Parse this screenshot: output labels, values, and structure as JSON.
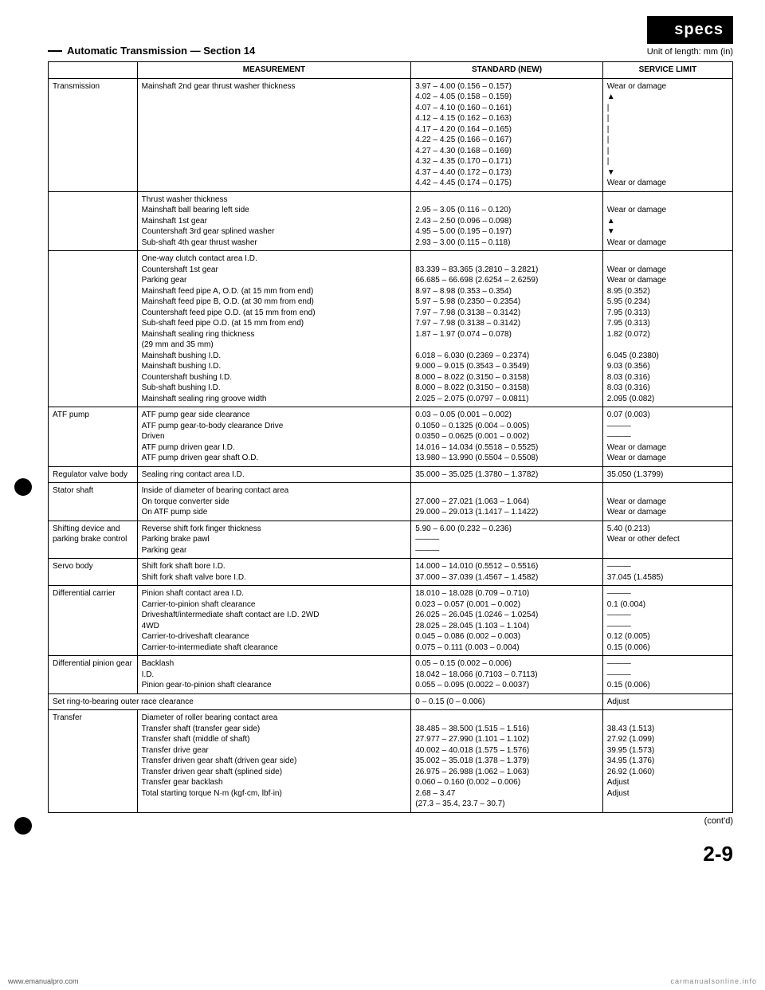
{
  "header": {
    "specs_label": "specs",
    "unit": "Unit of length: mm (in)",
    "section_title": "Automatic Transmission — Section 14"
  },
  "columns": {
    "c1": "",
    "c2": "MEASUREMENT",
    "c3": "STANDARD (NEW)",
    "c4": "SERVICE LIMIT"
  },
  "rows": [
    {
      "label": "Transmission",
      "meas": "Mainshaft 2nd gear thrust washer thickness",
      "std": "3.97 – 4.00 (0.156 – 0.157)\n4.02 – 4.05 (0.158 – 0.159)\n4.07 – 4.10 (0.160 – 0.161)\n4.12 – 4.15 (0.162 – 0.163)\n4.17 – 4.20 (0.164 – 0.165)\n4.22 – 4.25 (0.166 – 0.167)\n4.27 – 4.30 (0.168 – 0.169)\n4.32 – 4.35 (0.170 – 0.171)\n4.37 – 4.40 (0.172 – 0.173)\n4.42 – 4.45 (0.174 – 0.175)",
      "svc": "Wear or damage\n▲\n|\n|\n|\n|\n|\n|\n▼\nWear or damage"
    },
    {
      "label": "",
      "meas": "Thrust washer thickness\n  Mainshaft ball bearing left side\n  Mainshaft 1st gear\n  Countershaft 3rd gear splined washer\n  Sub-shaft 4th gear thrust washer",
      "std": "\n2.95 – 3.05 (0.116 – 0.120)\n2.43 – 2.50 (0.096 – 0.098)\n4.95 – 5.00 (0.195 – 0.197)\n2.93 – 3.00 (0.115 – 0.118)",
      "svc": "\nWear or damage\n▲\n▼\nWear or damage"
    },
    {
      "label": "",
      "meas": "One-way clutch contact area I.D.\n  Countershaft 1st gear\n  Parking gear\nMainshaft feed pipe A, O.D. (at 15 mm from end)\nMainshaft feed pipe B, O.D. (at 30 mm from end)\nCountershaft feed pipe O.D. (at 15 mm from end)\nSub-shaft feed pipe O.D. (at 15 mm from end)\nMainshaft sealing ring thickness\n  (29 mm and 35 mm)\nMainshaft bushing I.D.\nMainshaft bushing I.D.\nCountershaft bushing I.D.\nSub-shaft bushing I.D.\nMainshaft sealing ring groove width",
      "std": "\n83.339 – 83.365 (3.2810 – 3.2821)\n66.685 – 66.698 (2.6254 – 2.6259)\n8.97 – 8.98 (0.353 – 0.354)\n5.97 – 5.98 (0.2350 – 0.2354)\n7.97 – 7.98 (0.3138 – 0.3142)\n7.97 – 7.98 (0.3138 – 0.3142)\n1.87 – 1.97 (0.074 – 0.078)\n\n6.018 – 6.030 (0.2369 – 0.2374)\n9.000 – 9.015 (0.3543 – 0.3549)\n8.000 – 8.022 (0.3150 – 0.3158)\n8.000 – 8.022 (0.3150 – 0.3158)\n2.025 – 2.075 (0.0797 – 0.0811)",
      "svc": "\nWear or damage\nWear or damage\n8.95 (0.352)\n5.95 (0.234)\n7.95 (0.313)\n7.95 (0.313)\n1.82 (0.072)\n\n6.045 (0.2380)\n9.03 (0.356)\n8.03 (0.316)\n8.03 (0.316)\n2.095 (0.082)"
    },
    {
      "label": "ATF pump",
      "meas": "ATF pump gear side clearance\nATF pump gear-to-body clearance            Drive\n                                                                        Driven\nATF pump driven gear I.D.\nATF pump driven gear shaft O.D.",
      "std": "0.03 – 0.05 (0.001 – 0.002)\n0.1050 – 0.1325 (0.004 – 0.005)\n0.0350 – 0.0625 (0.001 – 0.002)\n14.016 – 14.034 (0.5518 – 0.5525)\n13.980 – 13.990 (0.5504 – 0.5508)",
      "svc": "0.07 (0.003)\n———\n———\nWear or damage\nWear or damage"
    },
    {
      "label": "Regulator valve body",
      "meas": "Sealing ring contact area I.D.",
      "std": "35.000 – 35.025 (1.3780 – 1.3782)",
      "svc": "35.050 (1.3799)"
    },
    {
      "label": "Stator shaft",
      "meas": "Inside of diameter of bearing contact area\n  On torque converter side\n  On ATF pump side",
      "std": "\n27.000 – 27.021 (1.063 – 1.064)\n29.000 – 29.013 (1.1417 – 1.1422)",
      "svc": "\nWear or damage\nWear or damage"
    },
    {
      "label": "Shifting device and parking brake control",
      "meas": "Reverse shift fork finger thickness\nParking brake pawl\nParking gear",
      "std": "5.90 – 6.00 (0.232 – 0.236)\n———\n———",
      "svc": "5.40 (0.213)\nWear or other defect"
    },
    {
      "label": "Servo body",
      "meas": "Shift fork shaft bore I.D.\nShift fork shaft valve bore I.D.",
      "std": "14.000 – 14.010 (0.5512 – 0.5516)\n37.000 – 37.039 (1.4567 – 1.4582)",
      "svc": "———\n37.045 (1.4585)"
    },
    {
      "label": "Differential carrier",
      "meas": "Pinion shaft contact area I.D.\nCarrier-to-pinion shaft clearance\nDriveshaft/intermediate shaft contact are I.D.   2WD\n                                                                              4WD\nCarrier-to-driveshaft clearance\nCarrier-to-intermediate shaft clearance",
      "std": "18.010 – 18.028 (0.709 – 0.710)\n0.023 – 0.057 (0.001 – 0.002)\n26.025 – 26.045 (1.0246 – 1.0254)\n28.025 – 28.045 (1.103 – 1.104)\n0.045 – 0.086 (0.002 – 0.003)\n0.075 – 0.111 (0.003 – 0.004)",
      "svc": "———\n0.1 (0.004)\n———\n———\n0.12 (0.005)\n0.15 (0.006)"
    },
    {
      "label": "Differential pinion gear",
      "meas": "Backlash\nI.D.\nPinion gear-to-pinion shaft clearance",
      "std": "0.05 – 0.15 (0.002 – 0.006)\n18.042 – 18.066 (0.7103 – 0.7113)\n0.055 – 0.095 (0.0022 – 0.0037)",
      "svc": "———\n———\n0.15 (0.006)"
    },
    {
      "label_span": "Set ring-to-bearing outer race clearance",
      "std": "0 – 0.15 (0 – 0.006)",
      "svc": "Adjust"
    },
    {
      "label": "Transfer",
      "meas": "Diameter of roller bearing contact area\n  Transfer shaft (transfer gear side)\n  Transfer shaft (middle of shaft)\n  Transfer drive gear\n  Transfer driven gear shaft (driven gear side)\n  Transfer driven gear shaft (splined side)\nTransfer gear backlash\nTotal starting torque N·m (kgf·cm, lbf·in)",
      "std": "\n38.485 – 38.500 (1.515 – 1.516)\n27.977 – 27.990 (1.101 – 1.102)\n40.002 – 40.018 (1.575 – 1.576)\n35.002 – 35.018 (1.378 – 1.379)\n26.975 – 26.988 (1.062 – 1.063)\n0.060 – 0.160 (0.002 – 0.006)\n2.68 – 3.47\n(27.3 – 35.4, 23.7 – 30.7)",
      "svc": "\n38.43 (1.513)\n27.92 (1.099)\n39.95 (1.573)\n34.95 (1.376)\n26.92 (1.060)\nAdjust\nAdjust"
    }
  ],
  "footer": {
    "contd": "(cont'd)",
    "page_num": "2-9",
    "left": "www.emanualpro.com",
    "right": "carmanualsonline.info"
  }
}
